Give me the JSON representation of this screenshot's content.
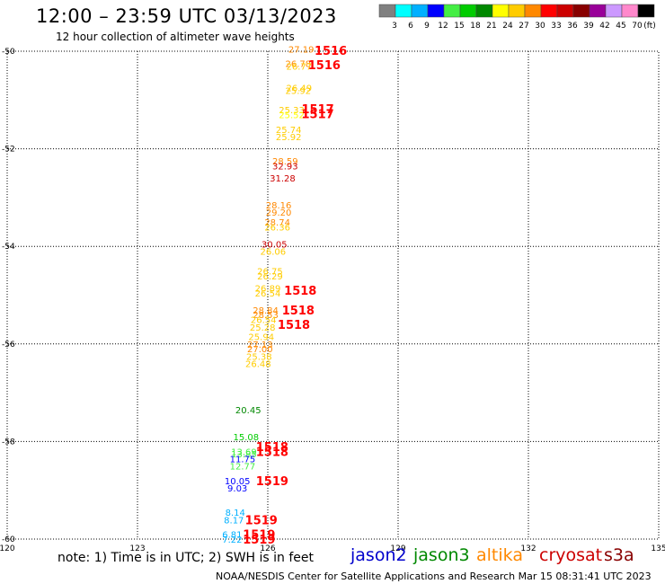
{
  "header": {
    "title": "12:00 – 23:59 UTC 03/13/2023",
    "subtitle": "12 hour collection of altimeter wave heights"
  },
  "colorbar": {
    "colors": [
      "#808080",
      "#00ffff",
      "#00b0ff",
      "#0000ff",
      "#44ee44",
      "#00cc00",
      "#008800",
      "#ffff00",
      "#ffcc00",
      "#ff8800",
      "#ff0000",
      "#cc0000",
      "#880000",
      "#990099",
      "#cc99ff",
      "#ff88cc",
      "#000000"
    ],
    "labels": [
      "3",
      "6",
      "9",
      "12",
      "15",
      "18",
      "21",
      "24",
      "27",
      "30",
      "33",
      "36",
      "39",
      "42",
      "45",
      "70",
      "(ft)"
    ]
  },
  "footer": {
    "note": "note:  1) Time is in UTC;  2) SWH is in feet",
    "credit": "NOAA/NESDIS Center for Satellite Applications and Research    Mar 15 08:31:41 UTC 2023",
    "satellites": [
      {
        "name": "jason2",
        "color": "#0000cc"
      },
      {
        "name": "jason3",
        "color": "#008800"
      },
      {
        "name": "altika",
        "color": "#ff8800"
      },
      {
        "name": "cryosat",
        "color": "#cc0000"
      },
      {
        "name": "s3a",
        "color": "#880000"
      }
    ]
  },
  "chart_data": {
    "type": "scatter",
    "title": "12:00 – 23:59 UTC 03/13/2023",
    "subtitle": "12 hour collection of altimeter wave heights",
    "xlim": [
      120,
      135
    ],
    "ylim": [
      -60,
      -50
    ],
    "x_ticks": [
      "120",
      "123",
      "126",
      "129",
      "132",
      "135"
    ],
    "y_ticks": [
      "-50",
      "-52",
      "-54",
      "-56",
      "-58",
      "-60"
    ],
    "grid": true,
    "wave_heights": [
      {
        "lon": 126.77,
        "lat": -49.95,
        "swh": "27.19",
        "color": "#ff8800"
      },
      {
        "lon": 126.7,
        "lat": -50.25,
        "swh": "26.78",
        "color": "#ff8800"
      },
      {
        "lon": 126.72,
        "lat": -50.3,
        "swh": "26.77",
        "color": "#ffcc00"
      },
      {
        "lon": 126.72,
        "lat": -50.75,
        "swh": "26.49",
        "color": "#ffcc00"
      },
      {
        "lon": 126.7,
        "lat": -50.8,
        "swh": "25.92",
        "color": "#ffcc00"
      },
      {
        "lon": 126.55,
        "lat": -51.2,
        "swh": "25.33",
        "color": "#ffcc00"
      },
      {
        "lon": 126.55,
        "lat": -51.3,
        "swh": "25.52",
        "color": "#ffff00"
      },
      {
        "lon": 126.48,
        "lat": -51.6,
        "swh": "25.74",
        "color": "#ffcc00"
      },
      {
        "lon": 126.48,
        "lat": -51.75,
        "swh": "25.92",
        "color": "#ffcc00"
      },
      {
        "lon": 126.4,
        "lat": -52.25,
        "swh": "28.59",
        "color": "#ff8800"
      },
      {
        "lon": 126.4,
        "lat": -52.35,
        "swh": "32.93",
        "color": "#cc0000"
      },
      {
        "lon": 126.34,
        "lat": -52.6,
        "swh": "31.28",
        "color": "#cc0000"
      },
      {
        "lon": 126.25,
        "lat": -53.15,
        "swh": "28.16",
        "color": "#ff8800"
      },
      {
        "lon": 126.25,
        "lat": -53.3,
        "swh": "29.20",
        "color": "#ff8800"
      },
      {
        "lon": 126.22,
        "lat": -53.5,
        "swh": "28.74",
        "color": "#ff8800"
      },
      {
        "lon": 126.22,
        "lat": -53.6,
        "swh": "26.36",
        "color": "#ffcc00"
      },
      {
        "lon": 126.15,
        "lat": -53.95,
        "swh": "30.05",
        "color": "#cc0000"
      },
      {
        "lon": 126.12,
        "lat": -54.1,
        "swh": "26.06",
        "color": "#ffcc00"
      },
      {
        "lon": 126.05,
        "lat": -54.5,
        "swh": "26.75",
        "color": "#ffcc00"
      },
      {
        "lon": 126.05,
        "lat": -54.6,
        "swh": "26.29",
        "color": "#ffcc00"
      },
      {
        "lon": 126.0,
        "lat": -54.85,
        "swh": "26.89",
        "color": "#ffcc00"
      },
      {
        "lon": 126.0,
        "lat": -54.95,
        "swh": "26.54",
        "color": "#ffcc00"
      },
      {
        "lon": 125.95,
        "lat": -55.3,
        "swh": "28.84",
        "color": "#ff8800"
      },
      {
        "lon": 125.95,
        "lat": -55.4,
        "swh": "28.53",
        "color": "#ff8800"
      },
      {
        "lon": 125.9,
        "lat": -55.5,
        "swh": "26.54",
        "color": "#ffcc00"
      },
      {
        "lon": 125.88,
        "lat": -55.65,
        "swh": "25.28",
        "color": "#ffcc00"
      },
      {
        "lon": 125.85,
        "lat": -55.85,
        "swh": "25.94",
        "color": "#ffcc00"
      },
      {
        "lon": 125.82,
        "lat": -56.0,
        "swh": "27.13",
        "color": "#ff8800"
      },
      {
        "lon": 125.82,
        "lat": -56.1,
        "swh": "27.00",
        "color": "#ff8800"
      },
      {
        "lon": 125.8,
        "lat": -56.25,
        "swh": "25.38",
        "color": "#ffcc00"
      },
      {
        "lon": 125.78,
        "lat": -56.4,
        "swh": "26.48",
        "color": "#ffcc00"
      },
      {
        "lon": 125.55,
        "lat": -57.35,
        "swh": "20.45",
        "color": "#008800"
      },
      {
        "lon": 125.5,
        "lat": -57.9,
        "swh": "15.08",
        "color": "#00cc00"
      },
      {
        "lon": 125.45,
        "lat": -58.2,
        "swh": "13.69",
        "color": "#44ee44"
      },
      {
        "lon": 125.45,
        "lat": -58.25,
        "swh": "13.85",
        "color": "#44ee44"
      },
      {
        "lon": 125.42,
        "lat": -58.35,
        "swh": "11.75",
        "color": "#0000ff"
      },
      {
        "lon": 125.42,
        "lat": -58.5,
        "swh": "12.77",
        "color": "#44ee44"
      },
      {
        "lon": 125.3,
        "lat": -58.8,
        "swh": "10.05",
        "color": "#0000ff"
      },
      {
        "lon": 125.3,
        "lat": -58.95,
        "swh": "9.03",
        "color": "#0000ff"
      },
      {
        "lon": 125.25,
        "lat": -59.45,
        "swh": "8.14",
        "color": "#00b0ff"
      },
      {
        "lon": 125.22,
        "lat": -59.6,
        "swh": "8.17",
        "color": "#00b0ff"
      },
      {
        "lon": 125.18,
        "lat": -59.9,
        "swh": "6.81",
        "color": "#00b0ff"
      },
      {
        "lon": 125.18,
        "lat": -60.0,
        "swh": "7.22",
        "color": "#00b0ff"
      }
    ],
    "pass_labels": [
      {
        "lon": 127.45,
        "lat": -49.98,
        "text": "1516",
        "color": "#ff0000"
      },
      {
        "lon": 127.3,
        "lat": -50.28,
        "text": "1516",
        "color": "#ff0000"
      },
      {
        "lon": 127.15,
        "lat": -51.18,
        "text": "1517",
        "color": "#ff0000"
      },
      {
        "lon": 127.15,
        "lat": -51.28,
        "text": "1517",
        "color": "#ff0000"
      },
      {
        "lon": 126.75,
        "lat": -54.9,
        "text": "1518",
        "color": "#ff0000"
      },
      {
        "lon": 126.7,
        "lat": -55.3,
        "text": "1518",
        "color": "#ff0000"
      },
      {
        "lon": 126.6,
        "lat": -55.6,
        "text": "1518",
        "color": "#ff0000"
      },
      {
        "lon": 126.1,
        "lat": -58.1,
        "text": "1518",
        "color": "#ff0000"
      },
      {
        "lon": 126.1,
        "lat": -58.2,
        "text": "1518",
        "color": "#ff0000"
      },
      {
        "lon": 126.1,
        "lat": -58.8,
        "text": "1519",
        "color": "#ff0000"
      },
      {
        "lon": 125.85,
        "lat": -59.6,
        "text": "1519",
        "color": "#ff0000"
      },
      {
        "lon": 125.8,
        "lat": -59.9,
        "text": "1519",
        "color": "#ff0000"
      },
      {
        "lon": 125.8,
        "lat": -60.0,
        "text": "1519",
        "color": "#ff0000"
      }
    ]
  }
}
